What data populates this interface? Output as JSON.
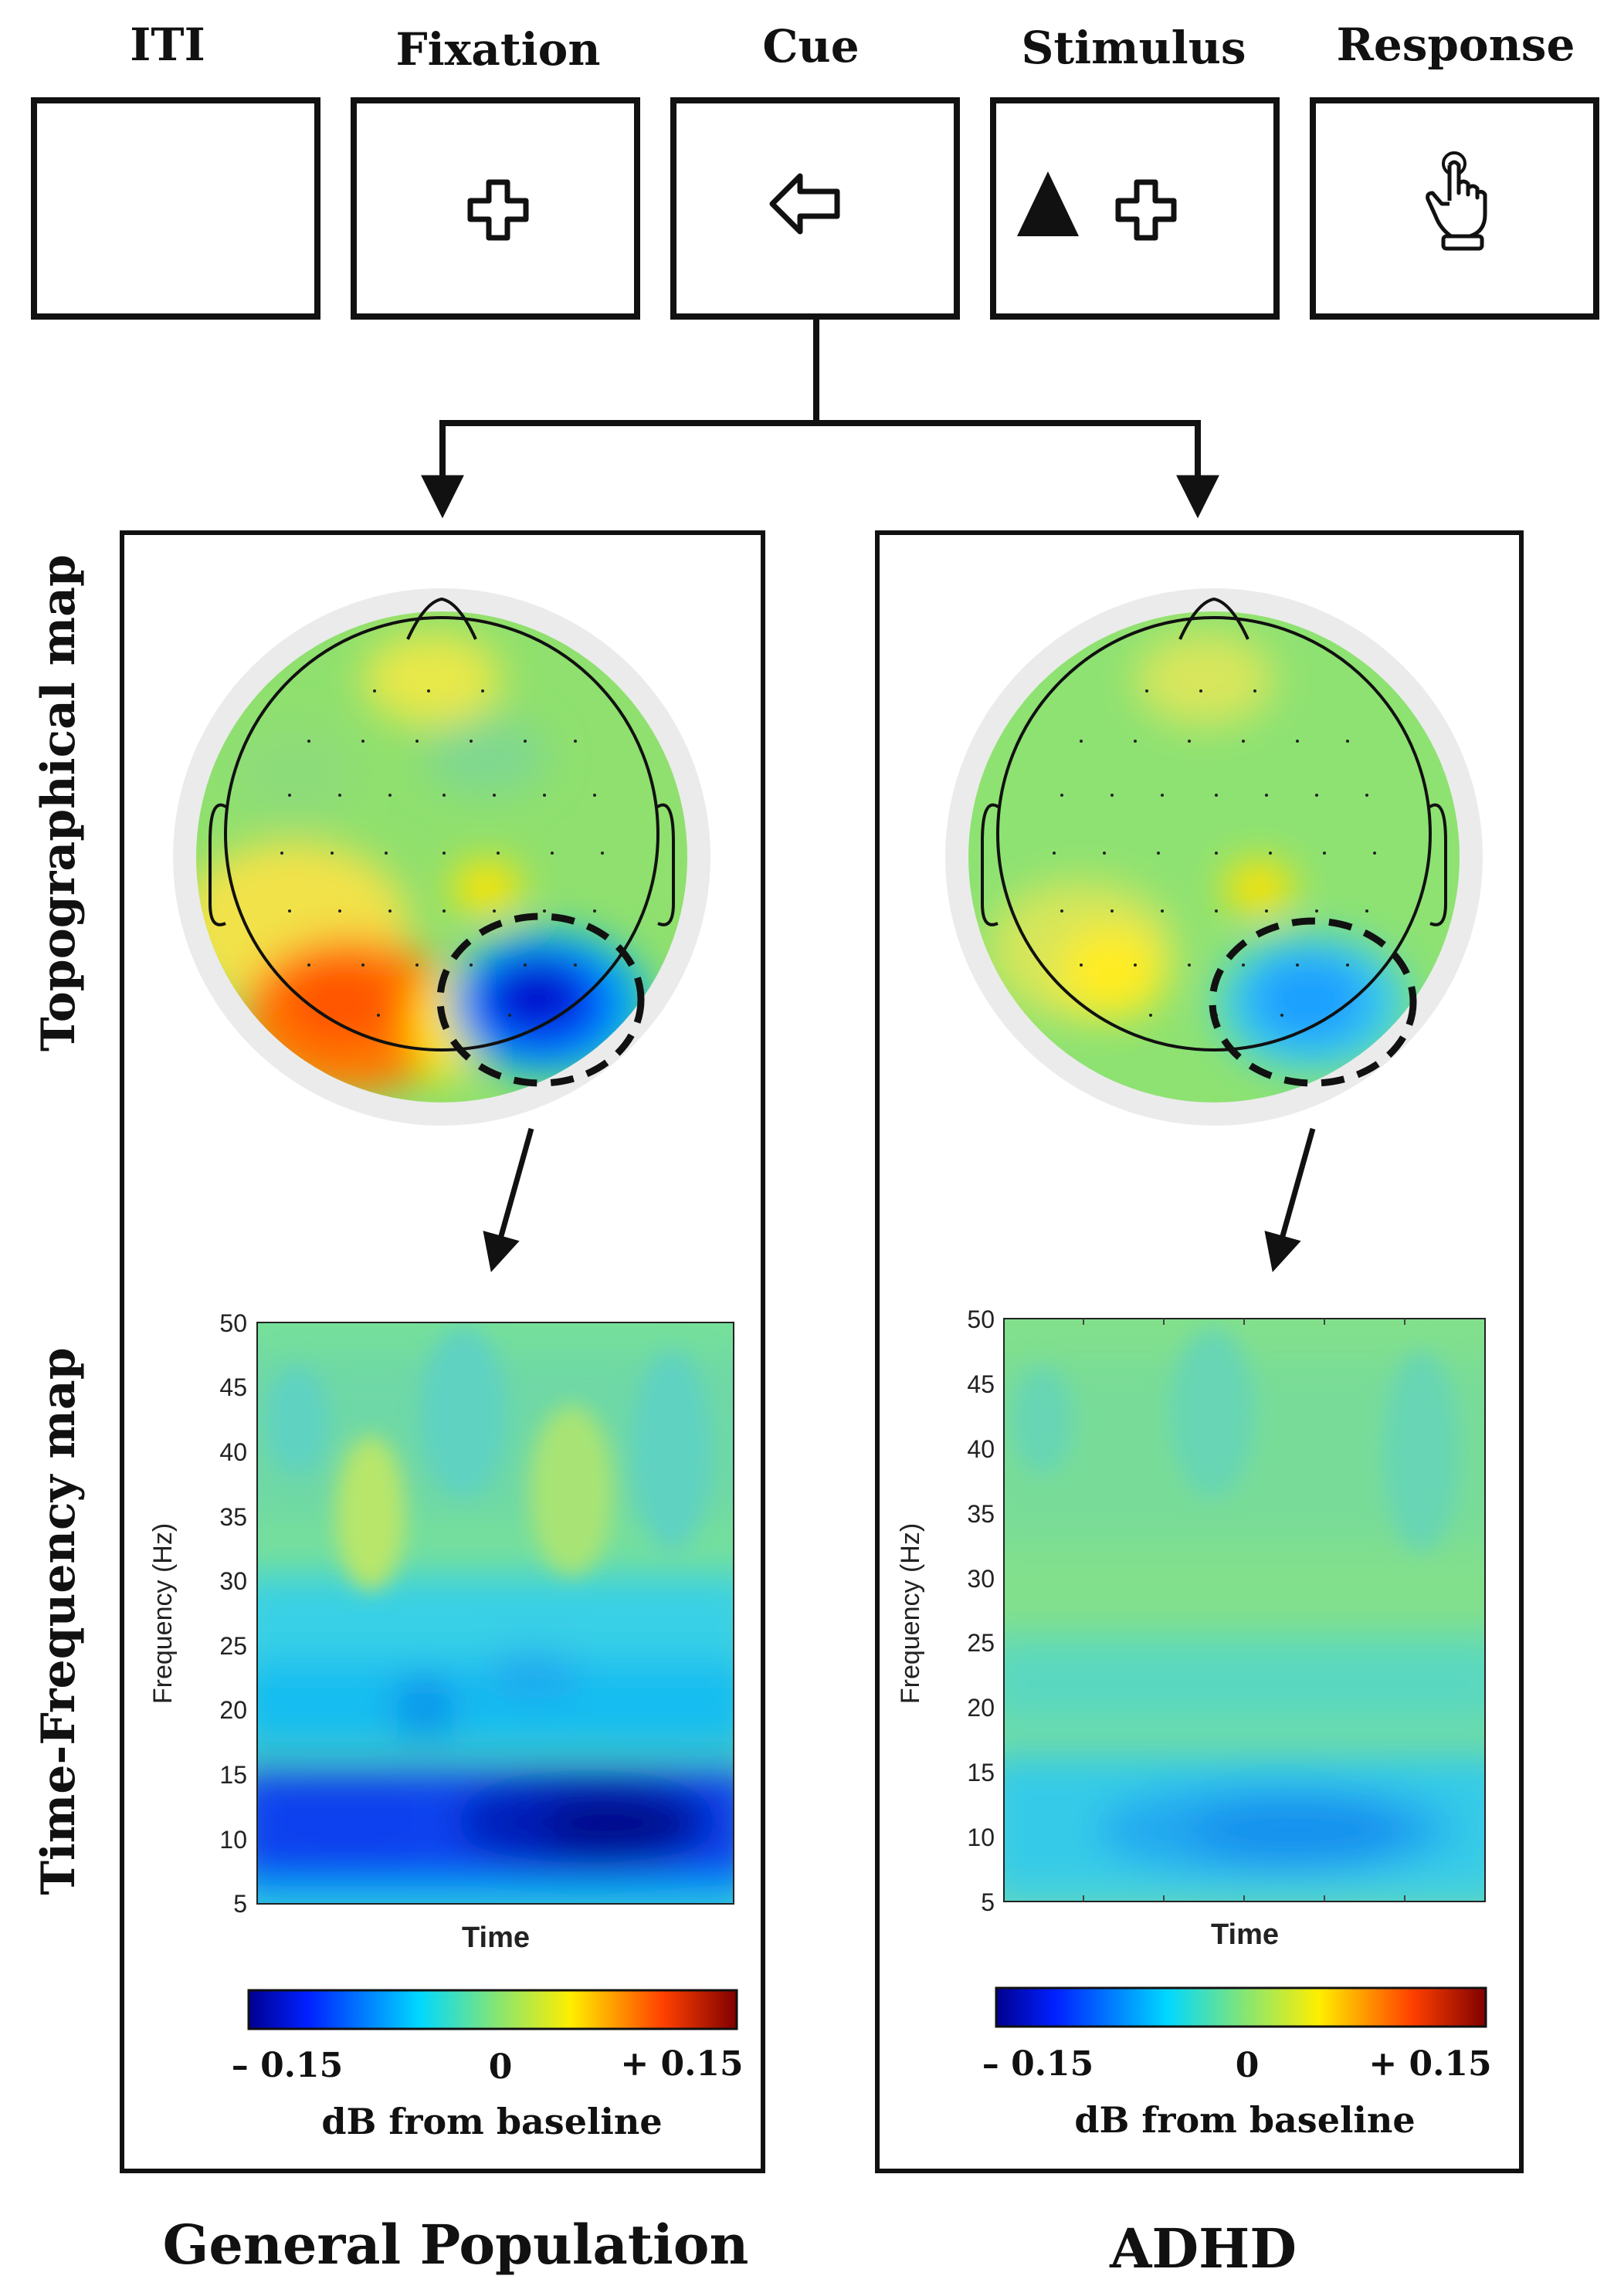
{
  "trial_sequence": {
    "stages": [
      {
        "label": "ITI",
        "icon": "blank"
      },
      {
        "label": "Fixation",
        "icon": "fixation-cross"
      },
      {
        "label": "Cue",
        "icon": "left-arrow"
      },
      {
        "label": "Stimulus",
        "icon": "triangle-and-cross"
      },
      {
        "label": "Response",
        "icon": "pointing-hand"
      }
    ]
  },
  "row_labels": {
    "topographical": "Topographical map",
    "time_frequency": "Time-Frequency map"
  },
  "panels": [
    {
      "group_label": "General Population",
      "highlight_intensity": "strong",
      "tf_map": {
        "y_axis_label": "Frequency (Hz)",
        "x_axis_label": "Time",
        "y_ticks": [
          "50",
          "45",
          "40",
          "35",
          "30",
          "25",
          "20",
          "15",
          "10",
          "5"
        ]
      },
      "colorbar": {
        "min_label": "– 0.15",
        "mid_label": "0",
        "max_label": "+ 0.15",
        "title": "dB from baseline"
      }
    },
    {
      "group_label": "ADHD",
      "highlight_intensity": "weak",
      "tf_map": {
        "y_axis_label": "Frequency (Hz)",
        "x_axis_label": "Time",
        "y_ticks": [
          "50",
          "45",
          "40",
          "35",
          "30",
          "25",
          "20",
          "15",
          "10",
          "5"
        ]
      },
      "colorbar": {
        "min_label": "– 0.15",
        "mid_label": "0",
        "max_label": "+ 0.15",
        "title": "dB from baseline"
      }
    }
  ],
  "colors": {
    "jet_dark_blue": "#00008f",
    "jet_blue": "#0040ff",
    "jet_cyan": "#00d8ff",
    "jet_green": "#7fe57a",
    "jet_yellow": "#ffee00",
    "jet_orange": "#ff7700",
    "jet_dark_red": "#800000"
  }
}
